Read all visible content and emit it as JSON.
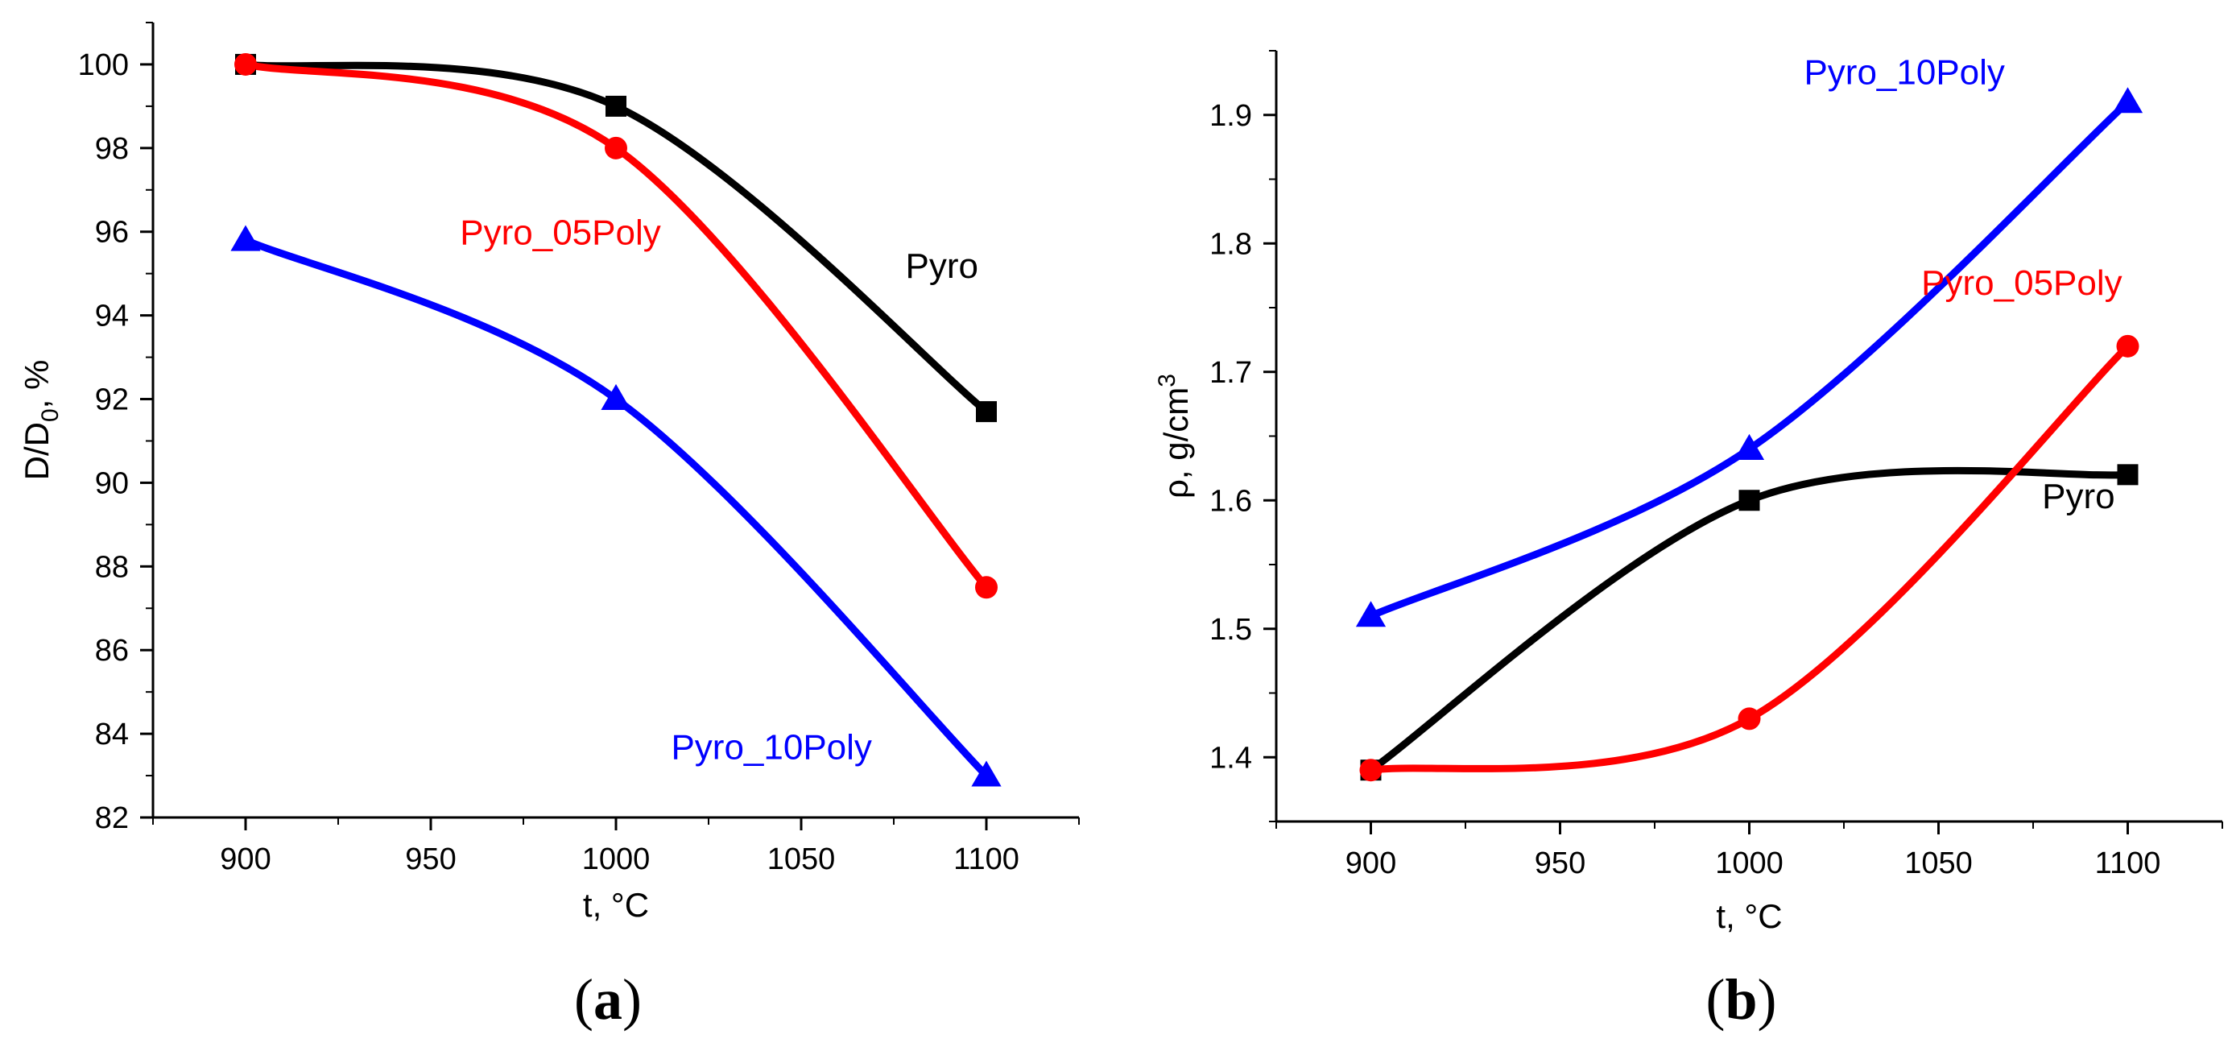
{
  "chart_data": [
    {
      "type": "line",
      "panel_label": "(a)",
      "panel_label_parts": {
        "open": "(",
        "letter": "a",
        "close": ")"
      },
      "xlabel": "t, °C",
      "ylabel": {
        "main": "D/D",
        "sub": "0",
        "tail": ", %"
      },
      "xlim": [
        875,
        1125
      ],
      "ylim": [
        82,
        101
      ],
      "xticks": [
        900,
        950,
        1000,
        1050,
        1100
      ],
      "yticks": [
        82,
        84,
        86,
        88,
        90,
        92,
        94,
        96,
        98,
        100
      ],
      "series": [
        {
          "name": "Pyro",
          "color": "#000000",
          "marker": "square",
          "x": [
            900,
            1000,
            1100
          ],
          "y": [
            100,
            99,
            91.7
          ]
        },
        {
          "name": "Pyro_05Poly",
          "color": "#ff0000",
          "marker": "circle",
          "x": [
            900,
            1000,
            1100
          ],
          "y": [
            100,
            98,
            87.5
          ]
        },
        {
          "name": "Pyro_10Poly",
          "color": "#0000ff",
          "marker": "triangle",
          "x": [
            900,
            1000,
            1100
          ],
          "y": [
            95.8,
            92,
            83
          ]
        }
      ],
      "annotations": [
        {
          "text": "Pyro",
          "color": "#000000",
          "x": 1088,
          "y": 94.9
        },
        {
          "text": "Pyro_05Poly",
          "color": "#ff0000",
          "x": 985,
          "y": 95.7
        },
        {
          "text": "Pyro_10Poly",
          "color": "#0000ff",
          "x": 1042,
          "y": 83.4
        }
      ]
    },
    {
      "type": "line",
      "panel_label": "(b)",
      "panel_label_parts": {
        "open": "(",
        "letter": "b",
        "close": ")"
      },
      "xlabel": "t, °C",
      "ylabel": {
        "main": "ρ, g/cm",
        "sup": "3"
      },
      "xlim": [
        875,
        1125
      ],
      "ylim": [
        1.35,
        1.95
      ],
      "xticks": [
        900,
        950,
        1000,
        1050,
        1100
      ],
      "yticks": [
        1.4,
        1.5,
        1.6,
        1.7,
        1.8,
        1.9
      ],
      "series": [
        {
          "name": "Pyro",
          "color": "#000000",
          "marker": "square",
          "x": [
            900,
            1000,
            1100
          ],
          "y": [
            1.39,
            1.6,
            1.62
          ]
        },
        {
          "name": "Pyro_05Poly",
          "color": "#ff0000",
          "marker": "circle",
          "x": [
            900,
            1000,
            1100
          ],
          "y": [
            1.39,
            1.43,
            1.72
          ]
        },
        {
          "name": "Pyro_10Poly",
          "color": "#0000ff",
          "marker": "triangle",
          "x": [
            900,
            1000,
            1100
          ],
          "y": [
            1.51,
            1.64,
            1.91
          ]
        }
      ],
      "annotations": [
        {
          "text": "Pyro",
          "color": "#000000",
          "x": 1087,
          "y": 1.594
        },
        {
          "text": "Pyro_05Poly",
          "color": "#ff0000",
          "x": 1072,
          "y": 1.76
        },
        {
          "text": "Pyro_10Poly",
          "color": "#0000ff",
          "x": 1041,
          "y": 1.924
        }
      ]
    }
  ]
}
